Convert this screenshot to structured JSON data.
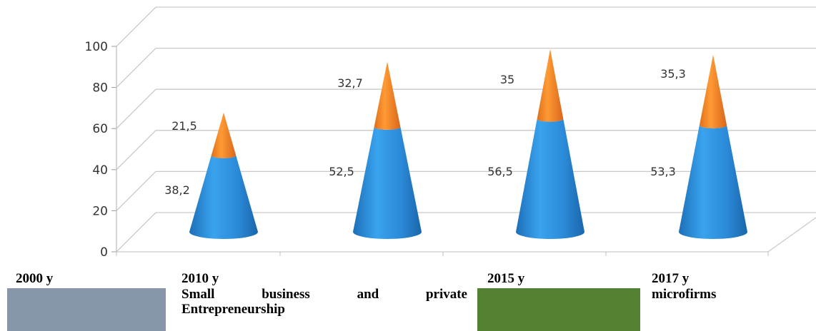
{
  "chart_data": {
    "type": "bar",
    "style": "3d-cone-stacked",
    "categories": [
      "2000 y",
      "2010 y",
      "2015 y",
      "2017 y"
    ],
    "series": [
      {
        "values": [
          38.2,
          52.5,
          56.5,
          53.3
        ],
        "color": "#2e8ad6"
      },
      {
        "values": [
          21.5,
          32.7,
          35,
          35.3
        ],
        "color": "#f0821f"
      }
    ],
    "data_labels": {
      "lower": [
        "38,2",
        "52,5",
        "56,5",
        "53,3"
      ],
      "upper": [
        "21,5",
        "32,7",
        "35",
        "35,3"
      ]
    },
    "yticks": [
      "0",
      "20",
      "40",
      "60",
      "80",
      "100"
    ],
    "ylim": [
      0,
      100
    ],
    "grid": true,
    "legend": {
      "position": "bottom",
      "items": [
        {
          "swatch_color": "#8896aa",
          "text": ""
        },
        {
          "swatch_color": "",
          "text_words": [
            "Small",
            "business",
            "and",
            "private"
          ],
          "text_line2": "Entrepreneurship"
        },
        {
          "swatch_color": "#548235",
          "text": ""
        },
        {
          "swatch_color": "",
          "text": "microfirms"
        }
      ]
    }
  }
}
